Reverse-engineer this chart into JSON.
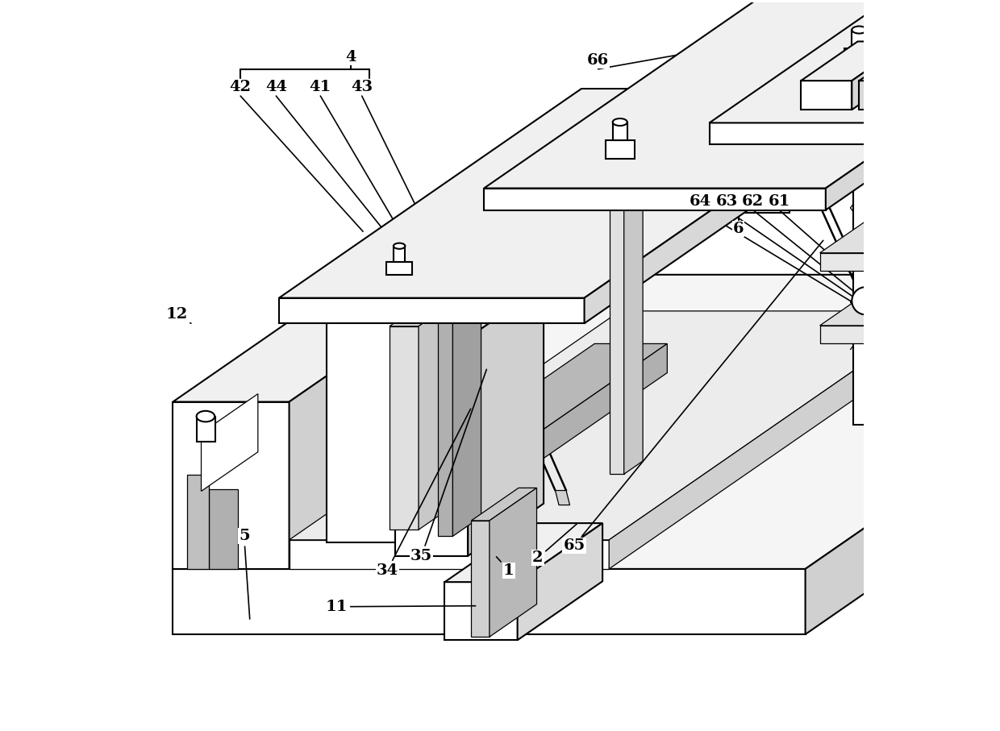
{
  "background_color": "#ffffff",
  "line_color": "#000000",
  "line_width": 1.5,
  "figsize": [
    12.4,
    9.07
  ],
  "dpi": 100
}
